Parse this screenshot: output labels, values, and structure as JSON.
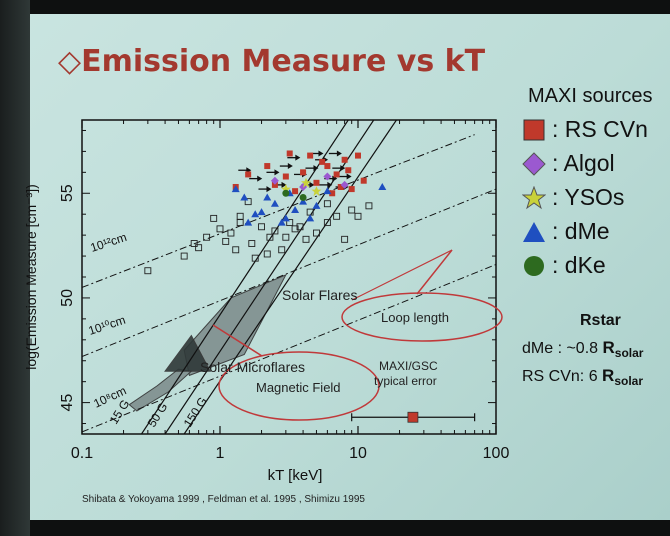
{
  "slide": {
    "title": "Emission Measure vs kT",
    "references": "Shibata & Yokoyama 1999 , Feldman et al. 1995 , Shimizu 1995"
  },
  "legend": {
    "title": "MAXI sources",
    "items": [
      {
        "label": ": RS CVn",
        "marker": "square",
        "color": "#c0392b"
      },
      {
        "label": ": Algol",
        "marker": "diamond",
        "color": "#9b59d0"
      },
      {
        "label": ": YSOs",
        "marker": "star",
        "color": "#c9d23a"
      },
      {
        "label": ": dMe",
        "marker": "triangle",
        "color": "#1f4fc0"
      },
      {
        "label": ": dKe",
        "marker": "circle",
        "color": "#2d6a1f"
      }
    ]
  },
  "rstar": {
    "heading": "Rstar",
    "lines": [
      {
        "prefix": "dMe : ~0.8 ",
        "R": "R",
        "sub": "solar"
      },
      {
        "prefix": "RS CVn: 6 ",
        "R": "R",
        "sub": "solar"
      }
    ]
  },
  "annotations": {
    "solar_flares": "Solar Flares",
    "solar_microflares": "Solar Microflares",
    "loop_length": "Loop length",
    "magnetic_field": "Magnetic Field",
    "error_label_1": "MAXI/GSC",
    "error_label_2": "typical error"
  },
  "chart_data": {
    "type": "scatter",
    "xlabel": "kT [keV]",
    "ylabel": "log(Emission Measure [cm⁻³])",
    "xscale": "log",
    "xlim": [
      0.1,
      100
    ],
    "ylim": [
      43.5,
      58.5
    ],
    "xticks": [
      {
        "v": 0.1,
        "label": "0.1"
      },
      {
        "v": 1,
        "label": "1"
      },
      {
        "v": 10,
        "label": "10"
      },
      {
        "v": 100,
        "label": "100"
      }
    ],
    "yticks": [
      {
        "v": 45,
        "label": "45"
      },
      {
        "v": 50,
        "label": "50"
      },
      {
        "v": 55,
        "label": "55"
      }
    ],
    "field_lines": [
      {
        "label": "15 G",
        "x0": 0.27,
        "y0": 43.5,
        "x1": 8.5,
        "y1": 58.5
      },
      {
        "label": "50 G",
        "x0": 0.4,
        "y0": 43.5,
        "x1": 13,
        "y1": 58.5
      },
      {
        "label": "150 G",
        "x0": 0.55,
        "y0": 43.5,
        "x1": 19,
        "y1": 58.5
      }
    ],
    "length_lines": [
      {
        "label": "10¹²cm",
        "x0": 0.1,
        "y0": 50.5,
        "x1": 70,
        "y1": 57.8
      },
      {
        "label": "10¹⁰cm",
        "x0": 0.1,
        "y0": 47.2,
        "x1": 100,
        "y1": 55.2
      },
      {
        "label": "10⁸cm",
        "x0": 0.1,
        "y0": 43.6,
        "x1": 100,
        "y1": 51.6
      }
    ],
    "series": [
      {
        "name": "RS CVn",
        "marker": "square",
        "color": "#c0392b",
        "points": [
          [
            3,
            55.8
          ],
          [
            4,
            56
          ],
          [
            5,
            55.5
          ],
          [
            6,
            56.3
          ],
          [
            7,
            55.9
          ],
          [
            8,
            56.6
          ],
          [
            2.5,
            55.4
          ],
          [
            9,
            55.2
          ],
          [
            10,
            56.8
          ],
          [
            4.5,
            56.8
          ],
          [
            6.5,
            55
          ],
          [
            3.5,
            55.1
          ],
          [
            5.5,
            56.5
          ],
          [
            7.5,
            55.3
          ],
          [
            8.5,
            56.1
          ],
          [
            2.2,
            56.3
          ],
          [
            3.2,
            56.9
          ],
          [
            11,
            55.6
          ],
          [
            1.6,
            55.9
          ],
          [
            1.3,
            55.3
          ]
        ]
      },
      {
        "name": "Algol",
        "marker": "diamond",
        "color": "#9b59d0",
        "points": [
          [
            2.5,
            55.6
          ],
          [
            4,
            55.3
          ],
          [
            6,
            55.8
          ],
          [
            8,
            55.4
          ]
        ]
      },
      {
        "name": "YSOs",
        "marker": "star",
        "color": "#c9d23a",
        "points": [
          [
            3,
            55.2
          ],
          [
            5,
            55.1
          ],
          [
            4.2,
            55.5
          ]
        ]
      },
      {
        "name": "dMe",
        "marker": "triangle",
        "color": "#1f4fc0",
        "points": [
          [
            1.5,
            54.8
          ],
          [
            2,
            54.1
          ],
          [
            2.5,
            54.5
          ],
          [
            3,
            53.8
          ],
          [
            1.8,
            54
          ],
          [
            2.2,
            54.8
          ],
          [
            3.5,
            54.2
          ],
          [
            4,
            54.6
          ],
          [
            1.3,
            55.2
          ],
          [
            2.8,
            53.6
          ],
          [
            5,
            54.4
          ],
          [
            6,
            55.1
          ],
          [
            3.2,
            55
          ],
          [
            1.6,
            53.6
          ],
          [
            15,
            55.3
          ],
          [
            4.5,
            53.8
          ]
        ]
      },
      {
        "name": "dKe",
        "marker": "circle",
        "color": "#2d6a1f",
        "points": [
          [
            3,
            55
          ],
          [
            4,
            54.8
          ]
        ]
      }
    ],
    "arrow_upper_limits": [
      [
        1.8,
        55.7
      ],
      [
        2.4,
        56
      ],
      [
        3,
        56.3
      ],
      [
        3.8,
        55.9
      ],
      [
        4.6,
        56.2
      ],
      [
        5.4,
        56.6
      ],
      [
        6.3,
        55.7
      ],
      [
        7.2,
        56.2
      ],
      [
        8,
        55.8
      ],
      [
        2.1,
        55.2
      ],
      [
        3.4,
        56.7
      ],
      [
        4.3,
        55.4
      ],
      [
        5.8,
        55.4
      ],
      [
        6.8,
        56.9
      ],
      [
        2.7,
        55.4
      ],
      [
        1.5,
        56.1
      ],
      [
        5,
        56.9
      ],
      [
        7.6,
        55.3
      ]
    ],
    "literature_points": [
      [
        0.3,
        51.3
      ],
      [
        0.55,
        52
      ],
      [
        0.65,
        52.6
      ],
      [
        0.8,
        52.9
      ],
      [
        1,
        53.3
      ],
      [
        1.2,
        53.1
      ],
      [
        1.1,
        52.7
      ],
      [
        0.9,
        53.8
      ],
      [
        1.4,
        53.6
      ],
      [
        1.7,
        52.6
      ],
      [
        2,
        53.4
      ],
      [
        2.3,
        52.9
      ],
      [
        2.5,
        53.2
      ],
      [
        3,
        52.9
      ],
      [
        3.2,
        53.6
      ],
      [
        3.8,
        53.4
      ],
      [
        4.2,
        52.8
      ],
      [
        5,
        53.1
      ],
      [
        6,
        53.6
      ],
      [
        7,
        53.9
      ],
      [
        8,
        52.8
      ],
      [
        10,
        53.9
      ],
      [
        12,
        54.4
      ],
      [
        1.6,
        54.6
      ],
      [
        1.4,
        53.9
      ],
      [
        0.7,
        52.4
      ],
      [
        1.3,
        52.3
      ],
      [
        2.8,
        52.3
      ],
      [
        4.5,
        54.1
      ],
      [
        6,
        54.5
      ],
      [
        9,
        54.2
      ],
      [
        1.8,
        51.9
      ],
      [
        2.2,
        52.1
      ],
      [
        3.5,
        53.3
      ]
    ],
    "regions": [
      {
        "name": "Solar Flares",
        "polygon": [
          [
            0.55,
            47.5
          ],
          [
            1.2,
            50
          ],
          [
            3,
            51.1
          ],
          [
            1.5,
            47.3
          ],
          [
            0.6,
            46.3
          ]
        ]
      },
      {
        "name": "Solar Microflares",
        "polygon": [
          [
            0.25,
            44.6
          ],
          [
            0.42,
            45.5
          ],
          [
            0.62,
            46.5
          ],
          [
            0.5,
            46.6
          ],
          [
            0.35,
            45.8
          ],
          [
            0.22,
            44.9
          ]
        ]
      },
      {
        "name": "Inner flare wedge",
        "polygon": [
          [
            0.4,
            46.5
          ],
          [
            0.62,
            48.2
          ],
          [
            0.85,
            46.5
          ]
        ]
      }
    ],
    "typical_error": {
      "x": 25,
      "y": 44.3,
      "xmin": 9,
      "xmax": 70
    }
  }
}
